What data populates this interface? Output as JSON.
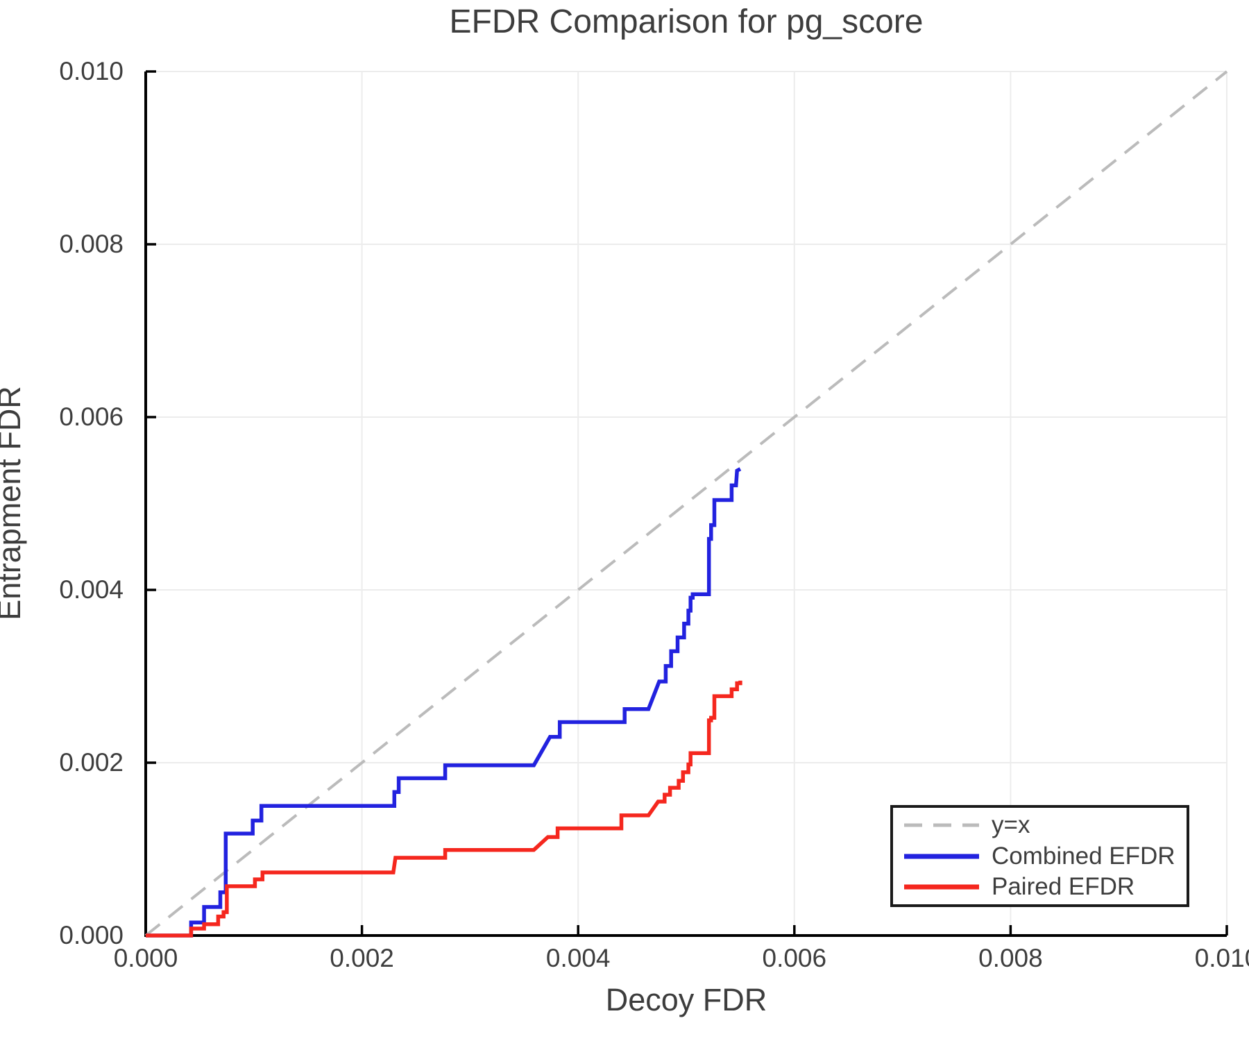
{
  "title": "EFDR Comparison for pg_score",
  "chart_data": {
    "type": "line",
    "title": "EFDR Comparison for pg_score",
    "xlabel": "Decoy FDR",
    "ylabel": "Entrapment FDR",
    "xlim": [
      0.0,
      0.01
    ],
    "ylim": [
      0.0,
      0.01
    ],
    "x_ticks": {
      "values": [
        0.0,
        0.002,
        0.004,
        0.006,
        0.008,
        0.01
      ],
      "labels": [
        "0.000",
        "0.002",
        "0.004",
        "0.006",
        "0.008",
        "0.010"
      ]
    },
    "y_ticks": {
      "values": [
        0.0,
        0.002,
        0.004,
        0.006,
        0.008,
        0.01
      ],
      "labels": [
        "0.000",
        "0.002",
        "0.004",
        "0.006",
        "0.008",
        "0.010"
      ]
    },
    "grid": true,
    "grid_color": "#ececec",
    "spine_color": "#000000",
    "text_color": "#3d3d3d",
    "legend_position": "lower right",
    "series": [
      {
        "name": "y=x",
        "style": "dashed",
        "color": "#bbbbbb",
        "points": [
          [
            0.0,
            0.0
          ],
          [
            0.01,
            0.01
          ]
        ]
      },
      {
        "name": "Combined EFDR",
        "style": "solid",
        "color": "#2222df",
        "points": [
          [
            0,
            0
          ],
          [
            0.00042,
            0
          ],
          [
            0.00042,
            0.00015
          ],
          [
            0.00054,
            0.00015
          ],
          [
            0.00054,
            0.00033
          ],
          [
            0.00069,
            0.00033
          ],
          [
            0.00069,
            0.0005
          ],
          [
            0.00074,
            0.0005
          ],
          [
            0.00074,
            0.00118
          ],
          [
            0.00099,
            0.00118
          ],
          [
            0.00099,
            0.00133
          ],
          [
            0.00107,
            0.00133
          ],
          [
            0.00107,
            0.0015
          ],
          [
            0.0023,
            0.0015
          ],
          [
            0.0023,
            0.00166
          ],
          [
            0.00234,
            0.00166
          ],
          [
            0.00234,
            0.00182
          ],
          [
            0.00277,
            0.00182
          ],
          [
            0.00277,
            0.00197
          ],
          [
            0.00359,
            0.00197
          ],
          [
            0.00374,
            0.0023
          ],
          [
            0.00383,
            0.0023
          ],
          [
            0.00383,
            0.00247
          ],
          [
            0.00443,
            0.00247
          ],
          [
            0.00443,
            0.00262
          ],
          [
            0.00465,
            0.00262
          ],
          [
            0.00475,
            0.00294
          ],
          [
            0.00481,
            0.00294
          ],
          [
            0.00481,
            0.00312
          ],
          [
            0.00486,
            0.00312
          ],
          [
            0.00486,
            0.00329
          ],
          [
            0.00492,
            0.00329
          ],
          [
            0.00492,
            0.00345
          ],
          [
            0.00498,
            0.00345
          ],
          [
            0.00498,
            0.00361
          ],
          [
            0.00502,
            0.00361
          ],
          [
            0.00502,
            0.00376
          ],
          [
            0.00504,
            0.00376
          ],
          [
            0.00504,
            0.00391
          ],
          [
            0.00506,
            0.00391
          ],
          [
            0.00506,
            0.00395
          ],
          [
            0.00521,
            0.00395
          ],
          [
            0.00521,
            0.00459
          ],
          [
            0.00523,
            0.00459
          ],
          [
            0.00523,
            0.00475
          ],
          [
            0.00526,
            0.00475
          ],
          [
            0.00526,
            0.00504
          ],
          [
            0.00542,
            0.00504
          ],
          [
            0.00542,
            0.00521
          ],
          [
            0.00546,
            0.00521
          ],
          [
            0.00547,
            0.00538
          ],
          [
            0.0055,
            0.0054
          ]
        ]
      },
      {
        "name": "Paired EFDR",
        "style": "solid",
        "color": "#f5271e",
        "points": [
          [
            0,
            0
          ],
          [
            0.00042,
            0
          ],
          [
            0.00042,
            8e-05
          ],
          [
            0.00054,
            8e-05
          ],
          [
            0.00054,
            0.00013
          ],
          [
            0.00067,
            0.00013
          ],
          [
            0.00067,
            0.00022
          ],
          [
            0.00072,
            0.00022
          ],
          [
            0.00072,
            0.00027
          ],
          [
            0.00075,
            0.00027
          ],
          [
            0.00075,
            0.00057
          ],
          [
            0.00101,
            0.00057
          ],
          [
            0.00101,
            0.00065
          ],
          [
            0.00108,
            0.00065
          ],
          [
            0.00108,
            0.00073
          ],
          [
            0.00229,
            0.00073
          ],
          [
            0.00231,
            0.0009
          ],
          [
            0.00277,
            0.0009
          ],
          [
            0.00277,
            0.00099
          ],
          [
            0.00359,
            0.00099
          ],
          [
            0.00372,
            0.00114
          ],
          [
            0.00381,
            0.00114
          ],
          [
            0.00381,
            0.00124
          ],
          [
            0.0044,
            0.00124
          ],
          [
            0.0044,
            0.00139
          ],
          [
            0.00465,
            0.00139
          ],
          [
            0.00474,
            0.00155
          ],
          [
            0.0048,
            0.00155
          ],
          [
            0.0048,
            0.00163
          ],
          [
            0.00485,
            0.00163
          ],
          [
            0.00485,
            0.00171
          ],
          [
            0.00493,
            0.00171
          ],
          [
            0.00493,
            0.00179
          ],
          [
            0.00497,
            0.00179
          ],
          [
            0.00497,
            0.00189
          ],
          [
            0.00502,
            0.00189
          ],
          [
            0.00502,
            0.00198
          ],
          [
            0.00504,
            0.00198
          ],
          [
            0.00504,
            0.00211
          ],
          [
            0.00521,
            0.00211
          ],
          [
            0.00521,
            0.00249
          ],
          [
            0.00523,
            0.00249
          ],
          [
            0.00523,
            0.00252
          ],
          [
            0.00526,
            0.00252
          ],
          [
            0.00526,
            0.00277
          ],
          [
            0.00542,
            0.00277
          ],
          [
            0.00542,
            0.00285
          ],
          [
            0.00547,
            0.00285
          ],
          [
            0.00547,
            0.00292
          ],
          [
            0.0055,
            0.00292
          ],
          [
            0.0055,
            0.00295
          ]
        ]
      }
    ]
  },
  "legend": {
    "entries": [
      {
        "label": "y=x"
      },
      {
        "label": "Combined EFDR"
      },
      {
        "label": "Paired EFDR"
      }
    ]
  }
}
